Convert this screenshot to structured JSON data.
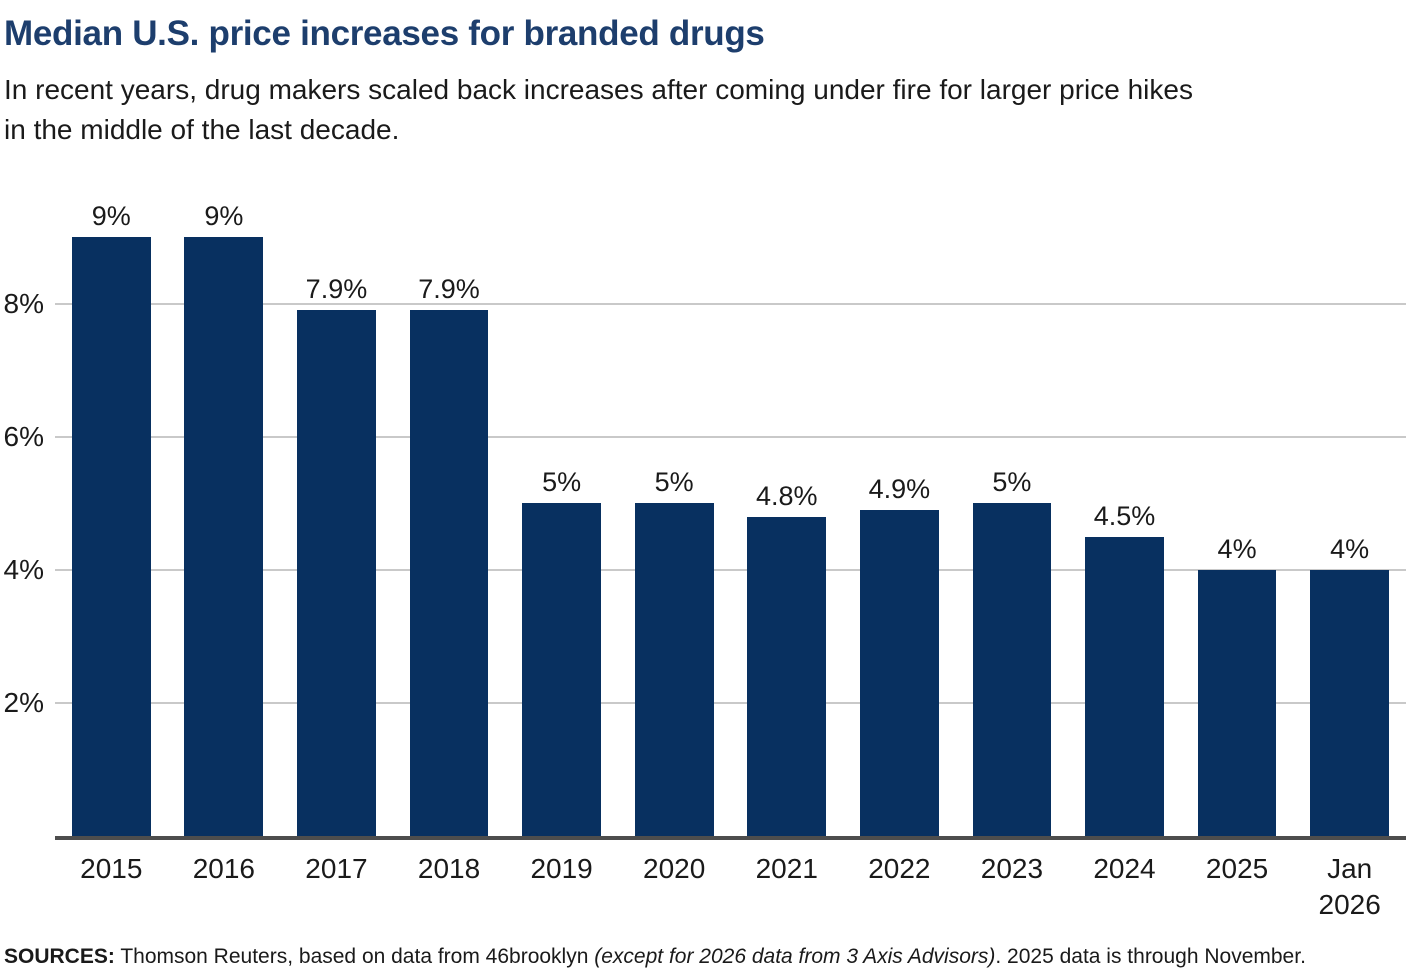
{
  "header": {
    "title": "Median U.S. price increases for branded drugs",
    "subtitle_line1": "In recent years, drug makers scaled back increases after coming under fire for larger price hikes",
    "subtitle_line2": "in the middle of the last decade."
  },
  "chart_data": {
    "type": "bar",
    "title": "Median U.S. price increases for branded drugs",
    "categories": [
      "2015",
      "2016",
      "2017",
      "2018",
      "2019",
      "2020",
      "2021",
      "2022",
      "2023",
      "2024",
      "2025",
      "Jan\n2026"
    ],
    "values": [
      9,
      9,
      7.9,
      7.9,
      5,
      5,
      4.8,
      4.9,
      5,
      4.5,
      4,
      4
    ],
    "value_labels": [
      "9%",
      "9%",
      "7.9%",
      "7.9%",
      "5%",
      "5%",
      "4.8%",
      "4.9%",
      "5%",
      "4.5%",
      "4%",
      "4%"
    ],
    "xlabel": "",
    "ylabel": "",
    "y_ticks": [
      2,
      4,
      6,
      8
    ],
    "y_tick_labels": [
      "2%",
      "4%",
      "6%",
      "8%"
    ],
    "ylim": [
      0,
      9.8
    ],
    "grid": "horizontal-behind-bars",
    "legend": "none",
    "bar_color": "#083060",
    "gridline_color": "#c9c9c9",
    "axis_color": "#4d4d4d"
  },
  "source": {
    "label": "SOURCES:",
    "text_before_italic": " Thomson Reuters, based on data from 46brooklyn ",
    "italic": "(except for 2026 data from 3 Axis Advisors)",
    "text_after_italic": ". 2025 data is through November."
  },
  "colors": {
    "title": "#1d3e6d",
    "text": "#1a1a1a"
  }
}
